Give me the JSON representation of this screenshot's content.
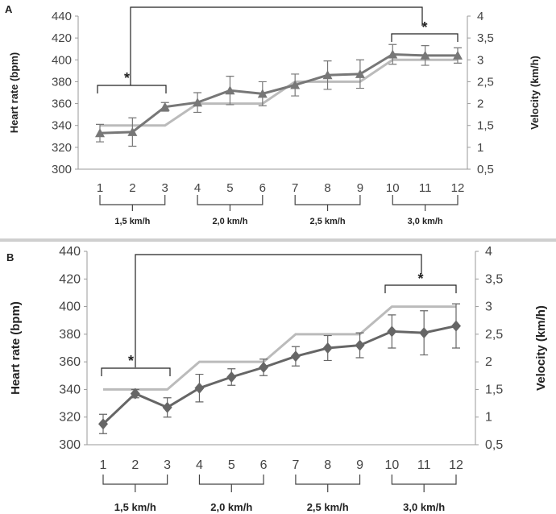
{
  "chart_data": [
    {
      "panel": "A",
      "type": "line",
      "x": [
        1,
        2,
        3,
        4,
        5,
        6,
        7,
        8,
        9,
        10,
        11,
        12
      ],
      "xticks": [
        "1",
        "2",
        "3",
        "4",
        "5",
        "6",
        "7",
        "8",
        "9",
        "10",
        "11",
        "12"
      ],
      "ylabel": "Heart rate (bpm)",
      "y2label": "Velocity (km/h)",
      "ylim": [
        300,
        440
      ],
      "yticks": [
        "300",
        "320",
        "340",
        "360",
        "380",
        "400",
        "420",
        "440"
      ],
      "y2lim": [
        0.5,
        4
      ],
      "y2ticks": [
        "0,5",
        "1",
        "1,5",
        "2",
        "2,5",
        "3",
        "3,5",
        "4"
      ],
      "grid": false,
      "series": [
        {
          "role": "heart-rate",
          "axis": "left",
          "marker": "triangle",
          "color": "#777777",
          "values": [
            333,
            334,
            357,
            361,
            372,
            369,
            377,
            386,
            387,
            405,
            404,
            404
          ],
          "err": [
            8,
            13,
            4,
            9,
            13,
            11,
            10,
            13,
            13,
            9,
            9,
            7
          ]
        },
        {
          "role": "velocity",
          "axis": "right",
          "color": "#bbbbbb",
          "values": [
            1.5,
            1.5,
            1.5,
            2,
            2,
            2,
            2.5,
            2.5,
            2.5,
            3,
            3,
            3
          ]
        }
      ],
      "stage_labels": [
        "1,5 km/h",
        "2,0 km/h",
        "2,5 km/h",
        "3,0 km/h"
      ],
      "significance_marker": "*"
    },
    {
      "panel": "B",
      "type": "line",
      "x": [
        1,
        2,
        3,
        4,
        5,
        6,
        7,
        8,
        9,
        10,
        11,
        12
      ],
      "xticks": [
        "1",
        "2",
        "3",
        "4",
        "5",
        "6",
        "7",
        "8",
        "9",
        "10",
        "11",
        "12"
      ],
      "ylabel": "Heart rate (bpm)",
      "y2label": "Velocity (km/h)",
      "ylim": [
        300,
        440
      ],
      "yticks": [
        "300",
        "320",
        "340",
        "360",
        "380",
        "400",
        "420",
        "440"
      ],
      "y2lim": [
        0.5,
        4
      ],
      "y2ticks": [
        "0,5",
        "1",
        "1,5",
        "2",
        "2,5",
        "3",
        "3,5",
        "4"
      ],
      "grid": false,
      "series": [
        {
          "role": "heart-rate",
          "axis": "left",
          "marker": "diamond",
          "color": "#666666",
          "values": [
            315,
            337,
            327,
            341,
            349,
            356,
            364,
            370,
            372,
            382,
            381,
            386
          ],
          "err": [
            7,
            3,
            7,
            10,
            6,
            6,
            7,
            9,
            9,
            12,
            16,
            16
          ]
        },
        {
          "role": "velocity",
          "axis": "right",
          "color": "#bbbbbb",
          "values": [
            1.5,
            1.5,
            1.5,
            2,
            2,
            2,
            2.5,
            2.5,
            2.5,
            3,
            3,
            3
          ]
        }
      ],
      "stage_labels": [
        "1,5 km/h",
        "2,0 km/h",
        "2,5 km/h",
        "3,0 km/h"
      ],
      "significance_marker": "*"
    }
  ]
}
